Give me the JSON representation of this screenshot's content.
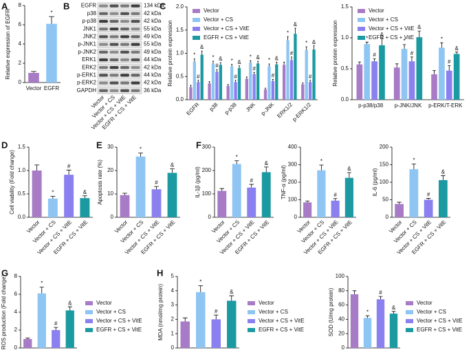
{
  "panel_labels": [
    "A",
    "B",
    "C",
    "D",
    "E",
    "F",
    "G",
    "H"
  ],
  "blot": {
    "proteins": [
      "EGFR",
      "p38",
      "p-p38",
      "JNK1",
      "JNK2",
      "p-JNK1",
      "p-JNK2",
      "ERK1",
      "ERK2",
      "p-ERK1",
      "p-ERK2",
      "GAPDH"
    ],
    "sizes": [
      "134 kDa",
      "42 kDa",
      "42 kDa",
      "55 kDa",
      "49 kDa",
      "55 kDa",
      "49 kDa",
      "44 kDa",
      "42 kDa",
      "44 kDa",
      "42 kDa",
      "36 kDa"
    ],
    "lanes": [
      "Vector",
      "Vector + CS",
      "Vector + CS + VitE",
      "EGFR + CS + VitE"
    ]
  },
  "chart_data": [
    {
      "type": "bar",
      "ylabel": "Relative expression of EGFR",
      "categories": [
        "Vector",
        "EGFR"
      ],
      "values": [
        1.0,
        6.1
      ],
      "errors": [
        0.15,
        0.75
      ],
      "annotations": [
        null,
        "*"
      ],
      "colors": [
        "#a77bc6",
        "#8ec5f3"
      ],
      "ylim": [
        0,
        8
      ],
      "yticks": [
        0,
        2,
        4,
        6,
        8
      ]
    },
    {
      "type": "bar",
      "ylabel": "Relative protein expression",
      "categories": [
        "EGFR",
        "p38",
        "p-p38",
        "JNK",
        "p-JNK",
        "ERK1/2",
        "p-ERK1/2"
      ],
      "series": [
        {
          "name": "Vector",
          "color": "#a77bc6",
          "values": [
            0.27,
            0.35,
            0.3,
            0.45,
            0.22,
            0.75,
            0.33
          ],
          "errors": [
            0.04,
            0.04,
            0.03,
            0.04,
            0.03,
            0.06,
            0.03
          ],
          "annotations": [
            null,
            null,
            null,
            null,
            null,
            null,
            null
          ]
        },
        {
          "name": "Vector + CS",
          "color": "#8ec5f3",
          "values": [
            0.82,
            0.78,
            0.72,
            0.8,
            0.72,
            1.28,
            1.07
          ],
          "errors": [
            0.06,
            0.05,
            0.04,
            0.04,
            0.05,
            0.08,
            0.07
          ],
          "annotations": [
            "*",
            "*",
            "*",
            "*",
            "*",
            "*",
            "*"
          ]
        },
        {
          "name": "Vector + CS + VitE",
          "color": "#8a80ef",
          "values": [
            0.38,
            0.6,
            0.38,
            0.55,
            0.4,
            0.85,
            0.38
          ],
          "errors": [
            0.04,
            0.05,
            0.04,
            0.04,
            0.04,
            0.07,
            0.04
          ],
          "annotations": [
            "#",
            "#",
            "#",
            "#",
            "#",
            "#",
            "#"
          ]
        },
        {
          "name": "EGFR + CS + VitE",
          "color": "#1c9aa2",
          "values": [
            0.97,
            0.75,
            0.68,
            0.78,
            0.76,
            1.42,
            1.08
          ],
          "errors": [
            0.08,
            0.05,
            0.05,
            0.05,
            0.05,
            0.12,
            0.08
          ],
          "annotations": [
            "&",
            "&",
            "&",
            "&",
            "&",
            "&",
            "&"
          ]
        }
      ],
      "ylim": [
        0,
        2
      ],
      "yticks": [
        {
          "value": 0,
          "label": "0.0"
        },
        {
          "value": 0.5,
          "label": "0.5"
        },
        {
          "value": 1,
          "label": "1.0"
        },
        {
          "value": 1.5,
          "label": "1.5"
        },
        {
          "value": 2,
          "label": "2.0"
        }
      ]
    },
    {
      "type": "bar",
      "ylabel": "Relative protein expression",
      "categories": [
        "p-p38/p38",
        "p-JNK/JNK",
        "p-ERK/T-ERK"
      ],
      "series": [
        {
          "name": "Vector",
          "color": "#a77bc6",
          "values": [
            0.57,
            0.52,
            0.41
          ],
          "errors": [
            0.04,
            0.06,
            0.06
          ],
          "annotations": [
            null,
            null,
            null
          ]
        },
        {
          "name": "Vector + CS",
          "color": "#8ec5f3",
          "values": [
            0.9,
            0.82,
            0.84
          ],
          "errors": [
            0.03,
            0.07,
            0.08
          ],
          "annotations": [
            "*",
            "*",
            "*"
          ]
        },
        {
          "name": "Vector + CS + VitE",
          "color": "#8a80ef",
          "values": [
            0.62,
            0.62,
            0.47
          ],
          "errors": [
            0.04,
            0.07,
            0.08
          ],
          "annotations": [
            "#",
            "#",
            "#"
          ]
        },
        {
          "name": "EGFR + CS + VitE",
          "color": "#1c9aa2",
          "values": [
            0.88,
            1.01,
            0.74
          ],
          "errors": [
            0.11,
            0.1,
            0.03
          ],
          "annotations": [
            "&",
            "&",
            "&"
          ]
        }
      ],
      "ylim": [
        0,
        1.5
      ],
      "yticks": [
        {
          "value": 0,
          "label": "0.0"
        },
        {
          "value": 0.5,
          "label": "0.5"
        },
        {
          "value": 1,
          "label": "1.0"
        },
        {
          "value": 1.5,
          "label": "1.5"
        }
      ]
    },
    {
      "type": "bar",
      "ylabel": "Cell viability (Fold change)",
      "categories": [
        "Vector",
        "Vector + CS",
        "Vector + CS + VitE",
        "EGFR + CS + VitE"
      ],
      "values": [
        1.0,
        0.4,
        0.91,
        0.41
      ],
      "errors": [
        0.12,
        0.05,
        0.1,
        0.05
      ],
      "annotations": [
        null,
        "*",
        "#",
        "&"
      ],
      "colors": [
        "#a77bc6",
        "#8ec5f3",
        "#8a80ef",
        "#1c9aa2"
      ],
      "ylim": [
        0,
        1.5
      ],
      "yticks": [
        {
          "value": 0,
          "label": "0.0"
        },
        {
          "value": 0.5,
          "label": "0.5"
        },
        {
          "value": 1,
          "label": "1.0"
        },
        {
          "value": 1.5,
          "label": "1.5"
        }
      ]
    },
    {
      "type": "bar",
      "ylabel": "Apoptosis rate (%)",
      "categories": [
        "Vector",
        "Vector + CS",
        "Vector + CS + VitE",
        "EGFR + CS + VitE"
      ],
      "values": [
        9.5,
        26,
        12,
        19
      ],
      "errors": [
        0.8,
        1.5,
        1.2,
        1.7
      ],
      "annotations": [
        null,
        "*",
        "#",
        "&"
      ],
      "colors": [
        "#a77bc6",
        "#8ec5f3",
        "#8a80ef",
        "#1c9aa2"
      ],
      "ylim": [
        0,
        30
      ],
      "yticks": [
        0,
        10,
        20,
        30
      ]
    },
    {
      "type": "bar",
      "ylabel": "IL-1β (pg/ml)",
      "categories": [
        "Vector",
        "Vector + CS",
        "Vector + CS + VitE",
        "EGFR + CS + VitE"
      ],
      "values": [
        113,
        228,
        127,
        193
      ],
      "errors": [
        10,
        14,
        14,
        22
      ],
      "annotations": [
        null,
        "*",
        "#",
        "&"
      ],
      "colors": [
        "#a77bc6",
        "#8ec5f3",
        "#8a80ef",
        "#1c9aa2"
      ],
      "ylim": [
        0,
        300
      ],
      "yticks": [
        0,
        100,
        200,
        300
      ]
    },
    {
      "type": "bar",
      "ylabel": "TNF-α (pg/ml)",
      "categories": [
        "Vector",
        "Vector + CS",
        "Vector + CS + VitE",
        "EGFR + CS + VitE"
      ],
      "values": [
        85,
        268,
        95,
        225
      ],
      "errors": [
        8,
        30,
        12,
        30
      ],
      "annotations": [
        null,
        "*",
        "#",
        "&"
      ],
      "colors": [
        "#a77bc6",
        "#8ec5f3",
        "#8a80ef",
        "#1c9aa2"
      ],
      "ylim": [
        0,
        400
      ],
      "yticks": [
        0,
        100,
        200,
        300,
        400
      ]
    },
    {
      "type": "bar",
      "ylabel": "IL-6 (pg/ml)",
      "categories": [
        "Vector",
        "Vector + CS",
        "Vector + CS + VitE",
        "EGFR + CS + VitE"
      ],
      "values": [
        38,
        137,
        50,
        106
      ],
      "errors": [
        5,
        15,
        4,
        13
      ],
      "annotations": [
        null,
        "*",
        "#",
        "&"
      ],
      "colors": [
        "#a77bc6",
        "#8ec5f3",
        "#8a80ef",
        "#1c9aa2"
      ],
      "ylim": [
        0,
        200
      ],
      "yticks": [
        0,
        50,
        100,
        150,
        200
      ]
    },
    {
      "type": "bar",
      "ylabel": "ROS production (Fold change)",
      "categories": [
        "Vector",
        "Vector + CS",
        "Vector + CS + VitE",
        "EGFR + CS + VitE"
      ],
      "values": [
        1.0,
        6.1,
        2.0,
        4.2
      ],
      "errors": [
        0.1,
        0.7,
        0.3,
        0.4
      ],
      "annotations": [
        null,
        "*",
        "#",
        "&"
      ],
      "colors": [
        "#a77bc6",
        "#8ec5f3",
        "#8a80ef",
        "#1c9aa2"
      ],
      "ylim": [
        0,
        8
      ],
      "yticks": [
        0,
        2,
        4,
        6,
        8
      ],
      "legend": "right"
    },
    {
      "type": "bar",
      "ylabel": "MDA (nmol/mg protein)",
      "categories": [
        "Vector",
        "Vector + CS",
        "Vector + CS + VitE",
        "EGFR + CS + VitE"
      ],
      "values": [
        1.85,
        3.9,
        2.0,
        3.3
      ],
      "errors": [
        0.25,
        0.45,
        0.3,
        0.35
      ],
      "annotations": [
        null,
        "*",
        "#",
        "&"
      ],
      "colors": [
        "#a77bc6",
        "#8ec5f3",
        "#8a80ef",
        "#1c9aa2"
      ],
      "ylim": [
        0,
        5
      ],
      "yticks": [
        0,
        1,
        2,
        3,
        4,
        5
      ],
      "legend": "right"
    },
    {
      "type": "bar",
      "ylabel": "SOD (U/mg protein)",
      "categories": [
        "Vector",
        "Vector + CS",
        "Vector + CS + VitE",
        "EGFR + CS + VitE"
      ],
      "values": [
        75,
        42,
        68,
        48
      ],
      "errors": [
        5,
        3,
        4,
        3
      ],
      "annotations": [
        null,
        "*",
        "#",
        "&"
      ],
      "colors": [
        "#a77bc6",
        "#8ec5f3",
        "#8a80ef",
        "#1c9aa2"
      ],
      "ylim": [
        0,
        100
      ],
      "yticks": [
        0,
        20,
        40,
        60,
        80,
        100
      ],
      "legend": "right"
    }
  ]
}
